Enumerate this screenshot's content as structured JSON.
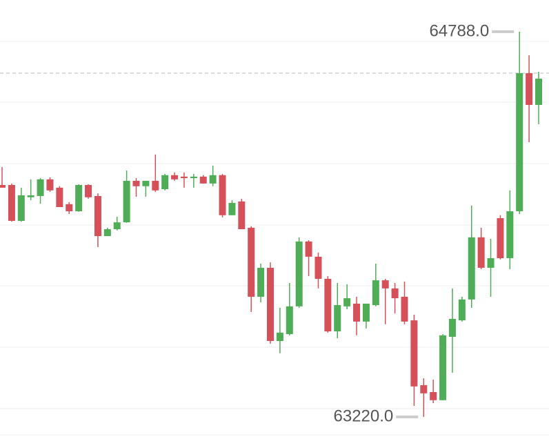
{
  "chart_data": {
    "type": "candlestick",
    "ylim": [
      63130,
      64917
    ],
    "up_color": "#4fac57",
    "down_color": "#d6505a",
    "open": [
      64164,
      64164,
      64018,
      64114,
      64119,
      64187,
      64153,
      64086,
      64057,
      64164,
      64119,
      63956,
      63984,
      64012,
      64181,
      64159,
      64181,
      64147,
      64204,
      64198,
      64192,
      64198,
      64170,
      64204,
      64041,
      64097,
      63990,
      63709,
      63827,
      63529,
      63557,
      63670,
      63934,
      63872,
      63782,
      63568,
      63670,
      63681,
      63608,
      63675,
      63776,
      63743,
      63709,
      63613,
      63349,
      63321,
      63288,
      63546,
      63613,
      63698,
      63951,
      63827,
      64029,
      63866,
      64057,
      64619,
      64490
    ],
    "high": [
      64237,
      64170,
      64153,
      64187,
      64192,
      64195,
      64159,
      64094,
      64167,
      64167,
      64130,
      63990,
      64035,
      64223,
      64192,
      64181,
      64288,
      64209,
      64215,
      64215,
      64209,
      64204,
      64243,
      64209,
      64102,
      64108,
      63996,
      63844,
      63849,
      63664,
      63765,
      63951,
      63939,
      63889,
      63793,
      63765,
      63760,
      63709,
      63681,
      63844,
      63782,
      63765,
      63771,
      63636,
      63377,
      63372,
      63557,
      63743,
      63709,
      64080,
      63990,
      63945,
      64041,
      64142,
      64788,
      64692,
      64625
    ],
    "low": [
      64153,
      64015,
      64015,
      64102,
      64088,
      64136,
      64074,
      64046,
      64055,
      64108,
      63911,
      63956,
      63979,
      64010,
      64116,
      64116,
      64136,
      64142,
      64181,
      64153,
      64153,
      64170,
      64159,
      64032,
      64041,
      63984,
      63647,
      63686,
      63518,
      63479,
      63552,
      63664,
      63793,
      63743,
      63563,
      63540,
      63658,
      63552,
      63580,
      63670,
      63597,
      63641,
      63597,
      63265,
      63220,
      63276,
      63288,
      63400,
      63608,
      63664,
      63821,
      63709,
      63861,
      63821,
      64046,
      64338,
      64411
    ],
    "close": [
      64153,
      64018,
      64122,
      64122,
      64187,
      64142,
      64074,
      64057,
      64164,
      64114,
      63956,
      63984,
      64012,
      64181,
      64159,
      64181,
      64142,
      64204,
      64187,
      64192,
      64198,
      64170,
      64204,
      64041,
      64091,
      63984,
      63709,
      63827,
      63529,
      63563,
      63670,
      63934,
      63872,
      63782,
      63568,
      63675,
      63703,
      63608,
      63681,
      63776,
      63743,
      63703,
      63608,
      63344,
      63316,
      63288,
      63552,
      63619,
      63698,
      63951,
      63827,
      63866,
      63866,
      64057,
      64619,
      64490,
      64597
    ],
    "annotations": [
      {
        "label": "64788.0",
        "value": 64788
      },
      {
        "label": "63220.0",
        "value": 63220
      }
    ]
  }
}
